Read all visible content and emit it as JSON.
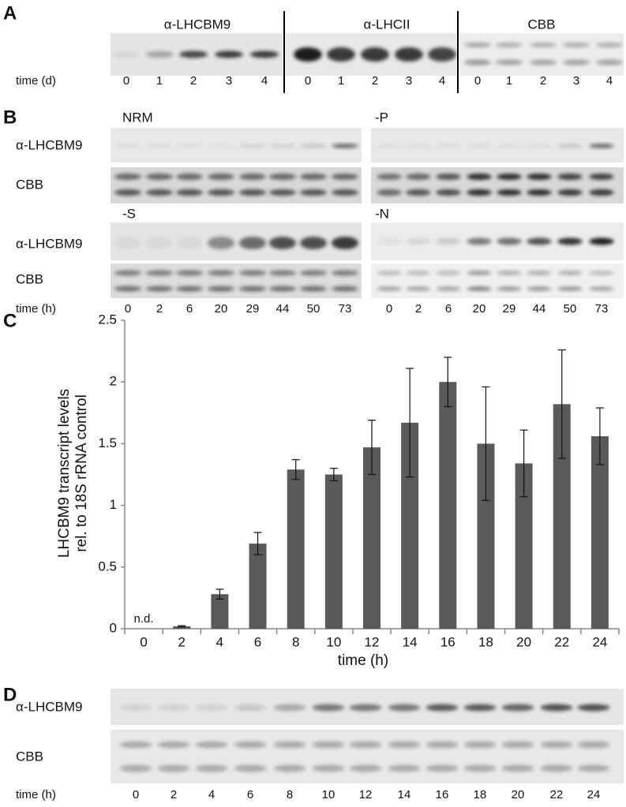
{
  "panel_a": {
    "letter": "A",
    "titles": [
      "α-LHCBM9",
      "α-LHCII",
      "CBB"
    ],
    "time_label": "time (d)",
    "lanes": [
      [
        "0",
        "1",
        "2",
        "3",
        "4"
      ],
      [
        "0",
        "1",
        "2",
        "3",
        "4"
      ],
      [
        "0",
        "1",
        "2",
        "3",
        "4"
      ]
    ]
  },
  "panel_b": {
    "letter": "B",
    "conditions": [
      "NRM",
      "-P",
      "-S",
      "-N"
    ],
    "row_labels": [
      "α-LHCBM9",
      "CBB",
      "α-LHCBM9",
      "CBB"
    ],
    "time_label": "time (h)",
    "lanes": [
      [
        "0",
        "2",
        "6",
        "20",
        "29",
        "44",
        "50",
        "73"
      ],
      [
        "0",
        "2",
        "6",
        "20",
        "29",
        "44",
        "50",
        "73"
      ]
    ]
  },
  "chart_data": {
    "type": "bar",
    "letter": "C",
    "y_label": [
      "LHCBM9 transcript levels",
      "rel. to 18S rRNA control"
    ],
    "x_label": "time (h)",
    "categories": [
      "0",
      "2",
      "4",
      "6",
      "8",
      "10",
      "12",
      "14",
      "16",
      "18",
      "20",
      "22",
      "24"
    ],
    "values": [
      null,
      0.02,
      0.28,
      0.69,
      1.29,
      1.25,
      1.47,
      1.67,
      2.0,
      1.5,
      1.34,
      1.82,
      1.56
    ],
    "errors": [
      null,
      0.005,
      0.04,
      0.09,
      0.08,
      0.05,
      0.22,
      0.44,
      0.2,
      0.46,
      0.27,
      0.44,
      0.23
    ],
    "annotations": [
      "n.d."
    ],
    "color": "#5a5a5a",
    "ylim": [
      0,
      2.5
    ],
    "yticks": [
      0,
      0.5,
      1,
      1.5,
      2,
      2.5
    ]
  },
  "panel_d": {
    "letter": "D",
    "row_labels": [
      "α-LHCBM9",
      "CBB"
    ],
    "time_label": "time (h)",
    "lanes": [
      "0",
      "2",
      "4",
      "6",
      "8",
      "10",
      "12",
      "14",
      "16",
      "18",
      "20",
      "22",
      "24"
    ]
  }
}
